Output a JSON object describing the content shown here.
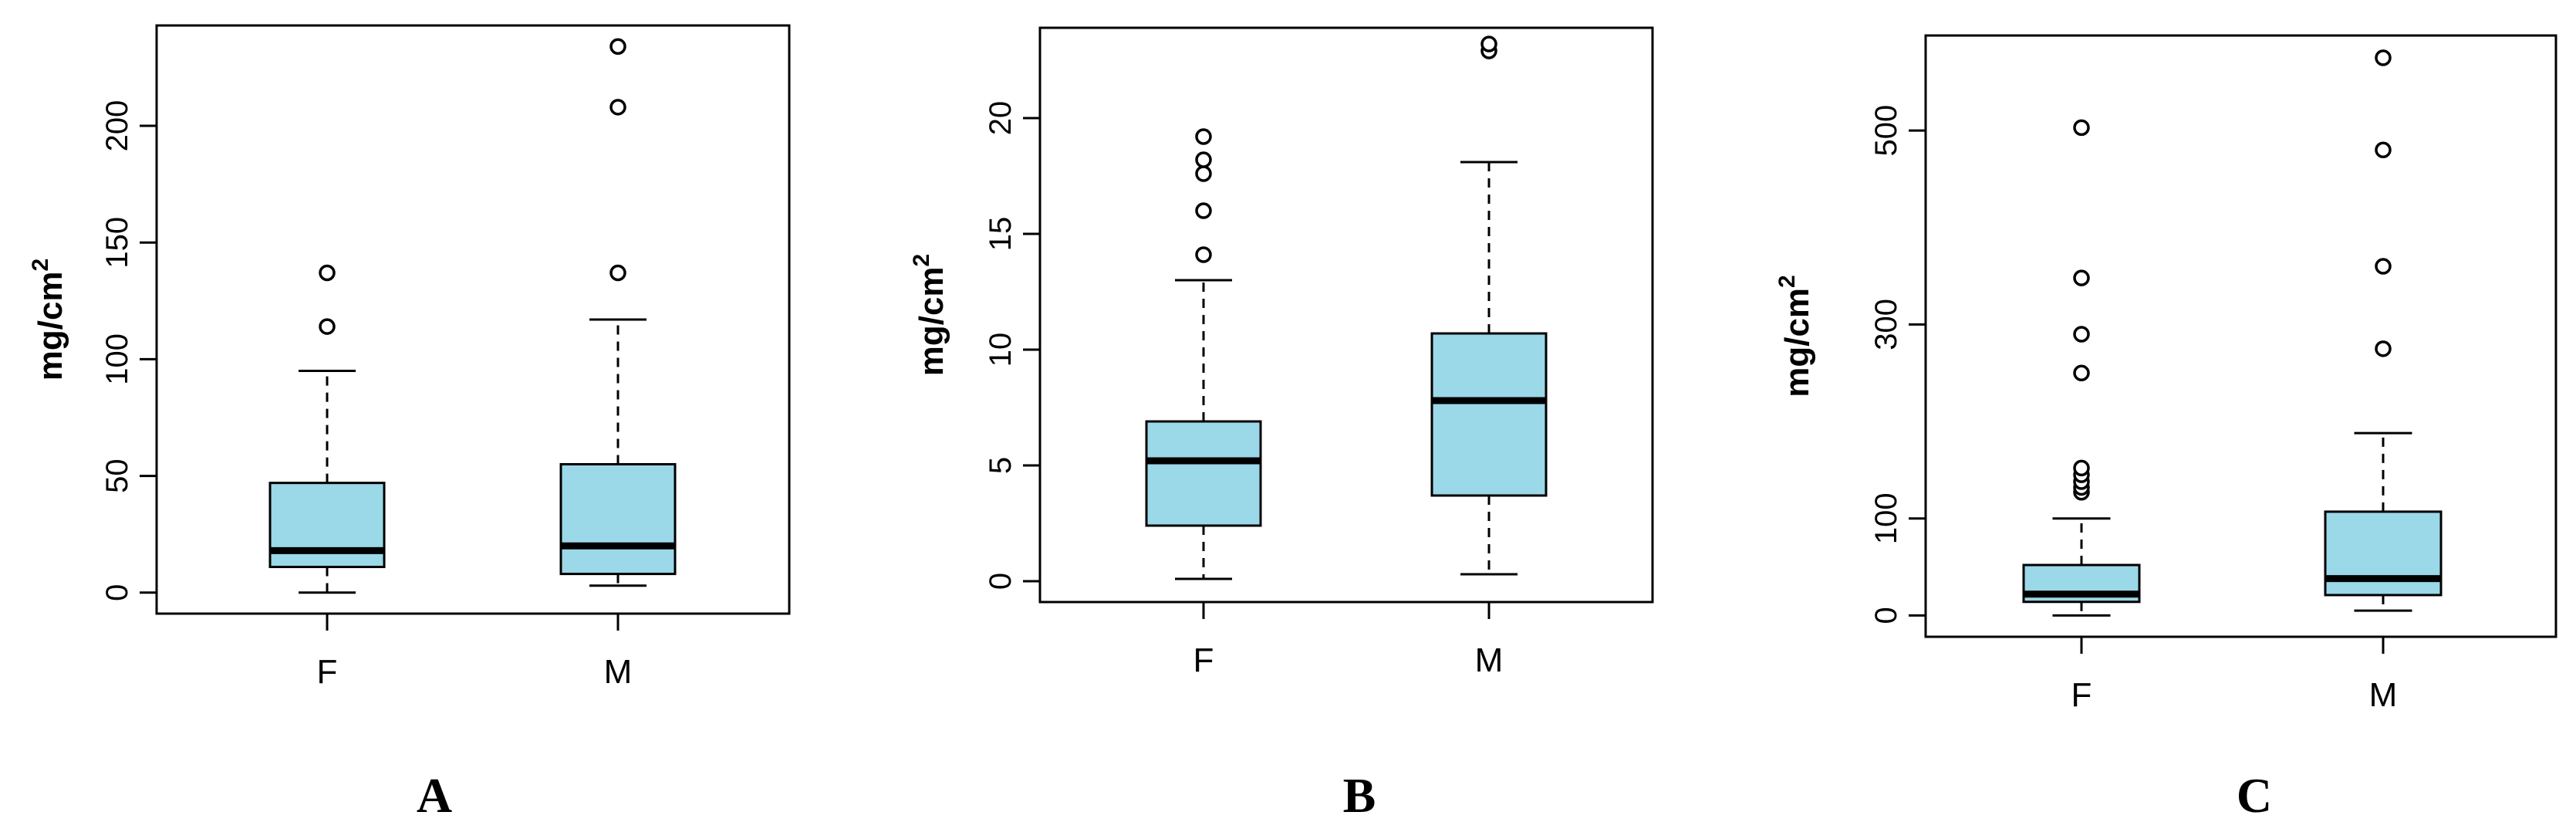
{
  "figure": {
    "panel_labels": [
      "A",
      "B",
      "C"
    ]
  },
  "chart_data": [
    {
      "type": "box",
      "panel": "A",
      "ylabel": "mg/cm",
      "ylabel_superscript": "2",
      "categories": [
        "F",
        "M"
      ],
      "yticks": [
        0,
        50,
        100,
        150,
        200
      ],
      "ylim": [
        -9,
        243
      ],
      "box_color": "#9bd8e8",
      "boxes": [
        {
          "category": "F",
          "whisker_low": 0,
          "q1": 11,
          "median": 18,
          "q3": 47,
          "whisker_high": 95,
          "outliers": [
            114,
            137
          ]
        },
        {
          "category": "M",
          "whisker_low": 3,
          "q1": 8,
          "median": 20,
          "q3": 55,
          "whisker_high": 117,
          "outliers": [
            137,
            208,
            234
          ]
        }
      ]
    },
    {
      "type": "box",
      "panel": "B",
      "ylabel": "mg/cm",
      "ylabel_superscript": "2",
      "categories": [
        "F",
        "M"
      ],
      "yticks": [
        0,
        5,
        10,
        15,
        20
      ],
      "ylim": [
        -0.9,
        23.9
      ],
      "box_color": "#9bd8e8",
      "boxes": [
        {
          "category": "F",
          "whisker_low": 0.1,
          "q1": 2.4,
          "median": 5.2,
          "q3": 6.9,
          "whisker_high": 13.0,
          "outliers": [
            14.1,
            16.0,
            17.6,
            18.2,
            19.2
          ]
        },
        {
          "category": "M",
          "whisker_low": 0.3,
          "q1": 3.7,
          "median": 7.8,
          "q3": 10.7,
          "whisker_high": 18.1,
          "outliers": [
            22.9,
            23.2
          ]
        }
      ]
    },
    {
      "type": "box",
      "panel": "C",
      "ylabel": "mg/cm",
      "ylabel_superscript": "2",
      "categories": [
        "F",
        "M"
      ],
      "yticks": [
        0,
        100,
        300,
        500
      ],
      "ylim": [
        -22,
        598
      ],
      "box_color": "#9bd8e8",
      "boxes": [
        {
          "category": "F",
          "whisker_low": 0,
          "q1": 14,
          "median": 22,
          "q3": 52,
          "whisker_high": 100,
          "outliers": [
            127,
            132,
            138,
            145,
            152,
            250,
            290,
            348,
            503
          ]
        },
        {
          "category": "M",
          "whisker_low": 5,
          "q1": 21,
          "median": 38,
          "q3": 107,
          "whisker_high": 188,
          "outliers": [
            275,
            360,
            480,
            575
          ]
        }
      ]
    }
  ]
}
